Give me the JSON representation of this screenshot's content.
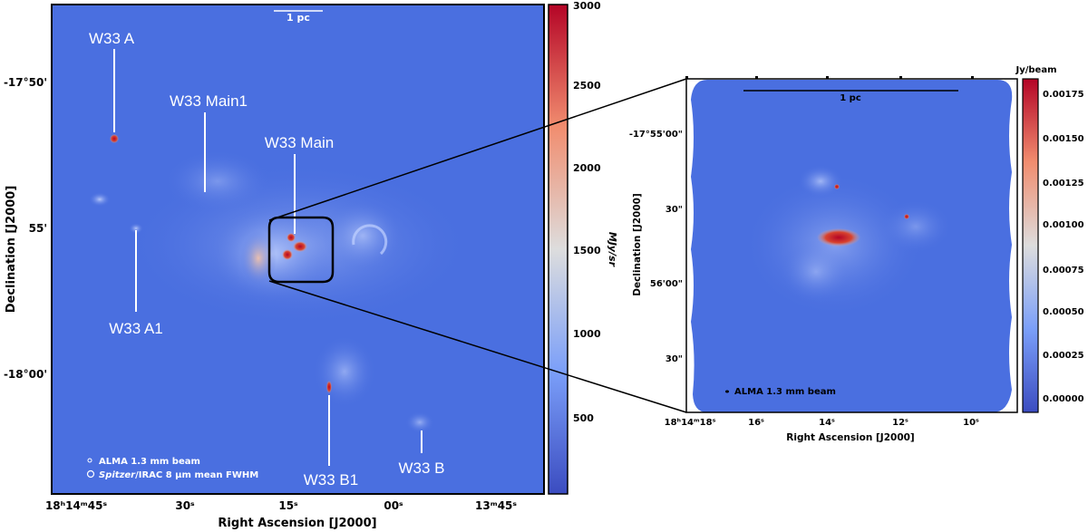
{
  "left_map": {
    "scale_bar_label": "1 pc",
    "labels": {
      "w33_a": "W33 A",
      "w33_main1": "W33 Main1",
      "w33_main": "W33 Main",
      "w33_a1": "W33 A1",
      "w33_b1": "W33 B1",
      "w33_b": "W33 B"
    },
    "beam_legend": {
      "alma": "ALMA 1.3 mm beam",
      "spitzer_italic": "Spitzer",
      "spitzer_rest": "/IRAC 8 µm mean FWHM"
    },
    "y_ticks": [
      "-17°50'",
      "55'",
      "-18°00'"
    ],
    "x_ticks": [
      "18ʰ14ᵐ45ˢ",
      "30ˢ",
      "15ˢ",
      "00ˢ",
      "13ᵐ45ˢ"
    ],
    "xlabel": "Right Ascension [J2000]",
    "ylabel": "Declination [J2000]",
    "colorbar": {
      "unit": "MJy/sr",
      "ticks": [
        "3000",
        "2500",
        "2000",
        "1500",
        "1000",
        "500"
      ]
    }
  },
  "right_map": {
    "scale_bar_label": "1 pc",
    "beam_label": "ALMA 1.3 mm beam",
    "y_ticks": [
      "-17°55'00\"",
      "30\"",
      "56'00\"",
      "30\""
    ],
    "x_ticks": [
      "18ʰ14ᵐ18ˢ",
      "16ˢ",
      "14ˢ",
      "12ˢ",
      "10ˢ"
    ],
    "xlabel": "Right Ascension [J2000]",
    "ylabel": "Declination [J2000]",
    "colorbar": {
      "unit": "Jy/beam",
      "ticks": [
        "0.00175",
        "0.00150",
        "0.00125",
        "0.00100",
        "0.00075",
        "0.00050",
        "0.00025",
        "0.00000"
      ]
    }
  },
  "colors": {
    "map_bg": "#4a6fe0",
    "cmap_low": "#3b4cc0",
    "cmap_mid": "#dddddd",
    "cmap_high": "#b40426"
  }
}
